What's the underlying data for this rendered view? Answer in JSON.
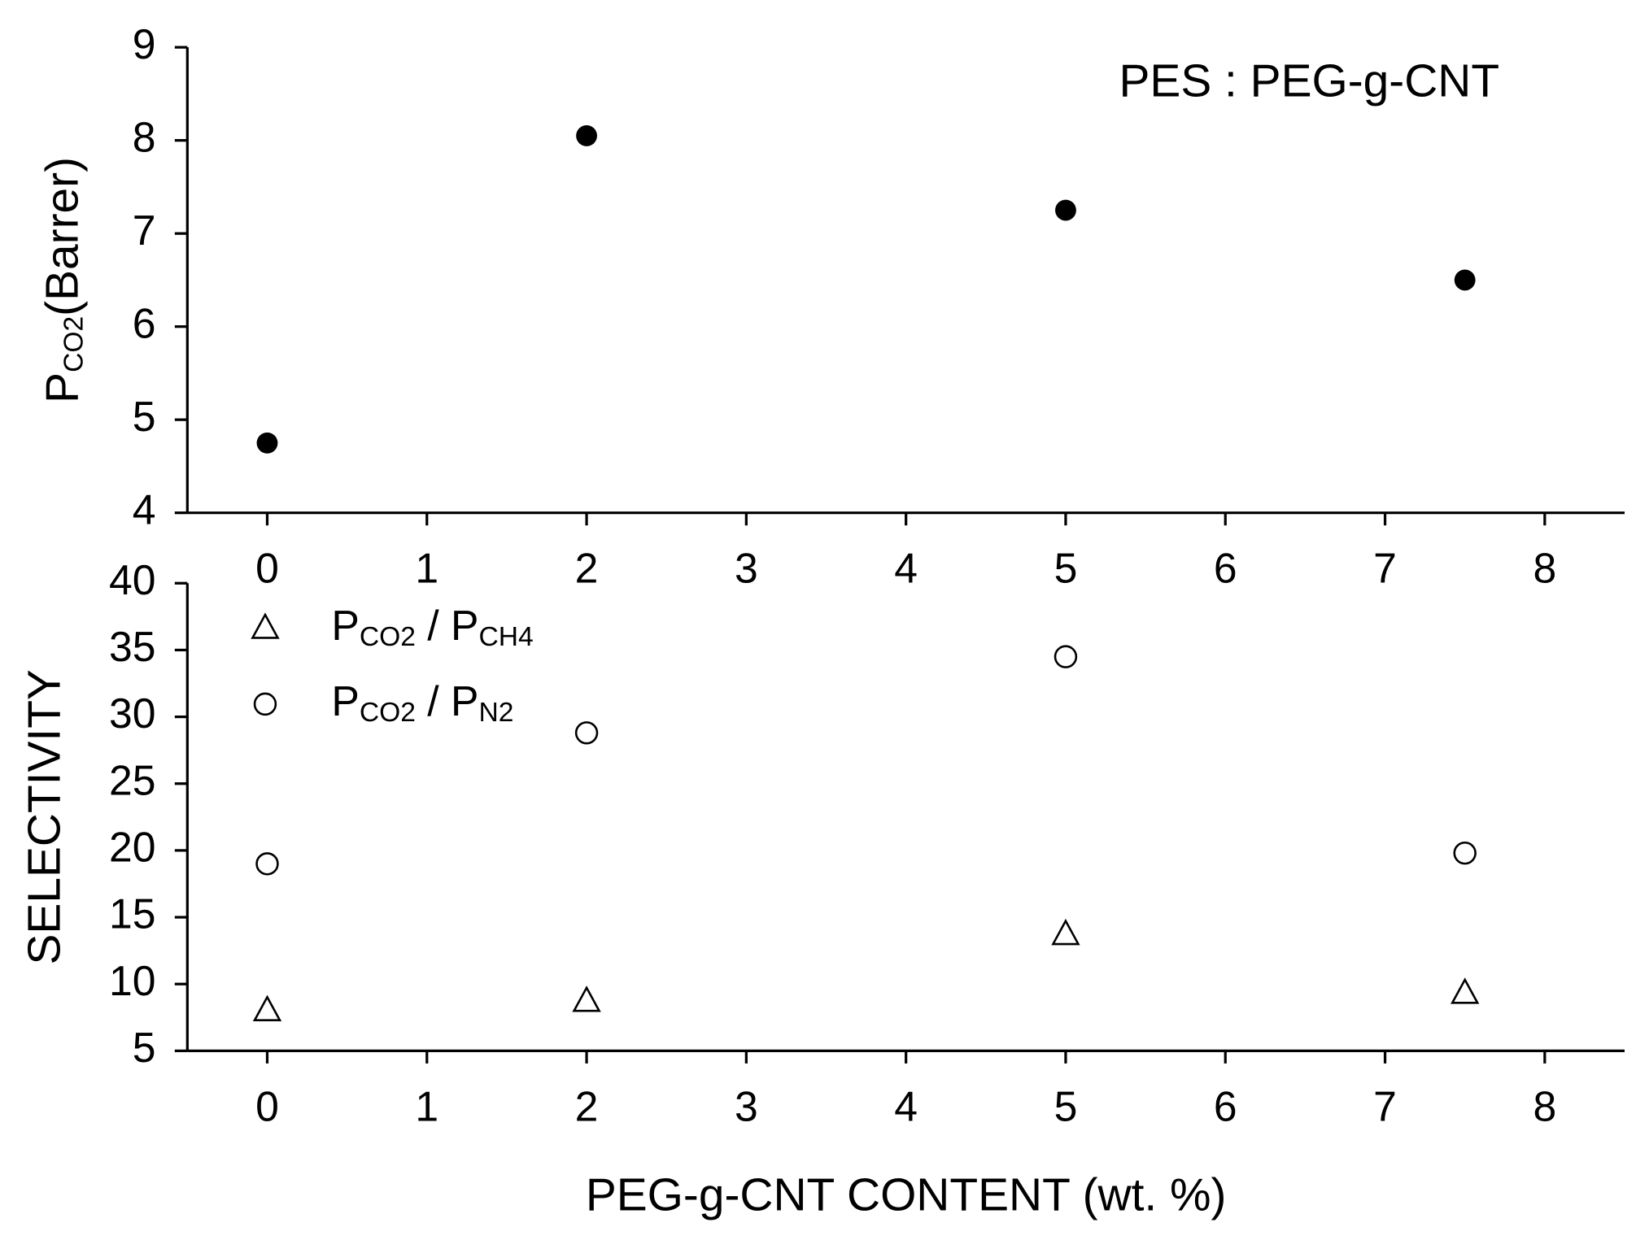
{
  "chart_data": [
    {
      "type": "scatter",
      "annotation": "PES : PEG-g-CNT",
      "ylabel": [
        "P",
        "CO2",
        "(Barrer)"
      ],
      "xlim": [
        -0.5,
        8.5
      ],
      "xticks": [
        0,
        1,
        2,
        3,
        4,
        5,
        6,
        7,
        8
      ],
      "ylim": [
        4,
        9
      ],
      "yticks": [
        4,
        5,
        6,
        7,
        8,
        9
      ],
      "series": [
        {
          "color": "#000000",
          "marker": "filled-circle",
          "x": [
            0,
            2,
            5,
            7.5
          ],
          "values": [
            4.75,
            8.05,
            7.25,
            6.5
          ]
        }
      ]
    },
    {
      "type": "scatter",
      "xlabel": "PEG-g-CNT  CONTENT  (wt. %)",
      "ylabel": [
        "SELECTIVITY"
      ],
      "xlim": [
        -0.5,
        8.5
      ],
      "xticks": [
        0,
        1,
        2,
        3,
        4,
        5,
        6,
        7,
        8
      ],
      "ylim": [
        5,
        40
      ],
      "yticks": [
        5,
        10,
        15,
        20,
        25,
        30,
        35,
        40
      ],
      "legend": "upper left",
      "series": [
        {
          "name": [
            "P",
            "CO2",
            " / P",
            "CH4"
          ],
          "color": "#000000",
          "marker": "open-triangle",
          "x": [
            0,
            2,
            5,
            7.5
          ],
          "values": [
            8,
            8.7,
            13.7,
            9.3
          ]
        },
        {
          "name": [
            "P",
            "CO2",
            " / P",
            "N2"
          ],
          "color": "#000000",
          "marker": "open-circle",
          "x": [
            0,
            2,
            5,
            7.5
          ],
          "values": [
            19,
            28.8,
            34.5,
            19.8
          ]
        }
      ]
    }
  ]
}
